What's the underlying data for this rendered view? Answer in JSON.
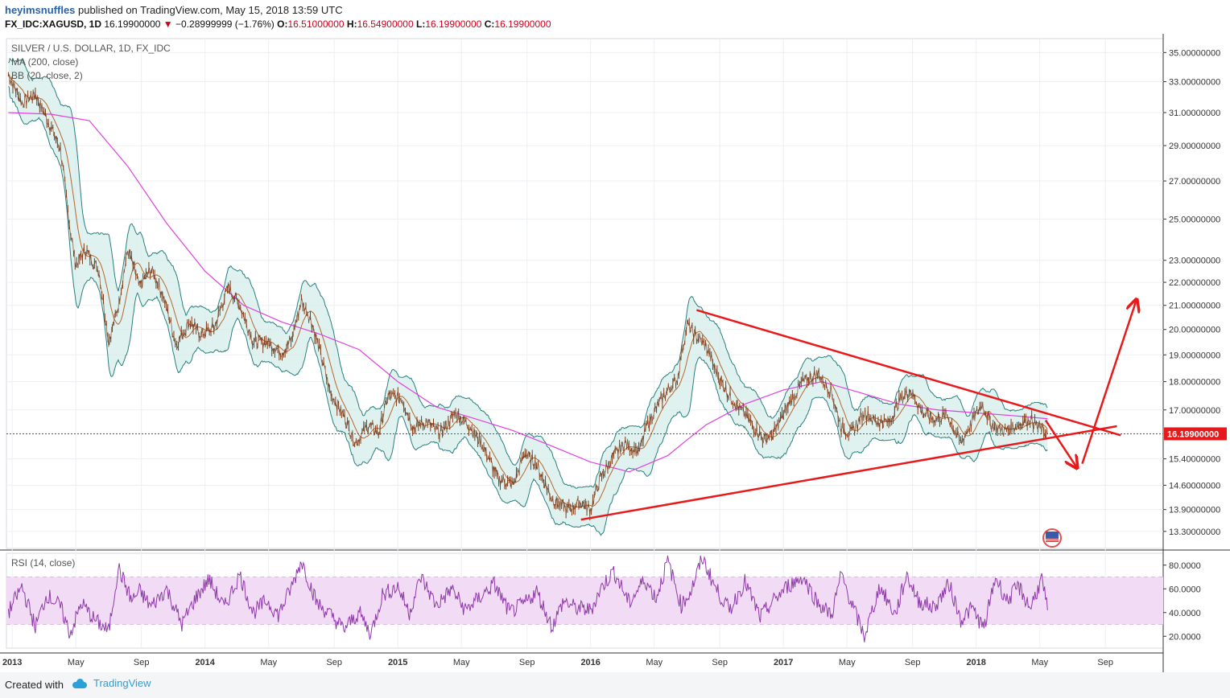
{
  "header": {
    "user": "heyimsnuffles",
    "published": "published on TradingView.com, May 15, 2018 13:59 UTC",
    "symbol": "FX_IDC:XAGUSD, 1D",
    "last": "16.19900000",
    "change": "−0.28999999 (−1.76%)",
    "o_label": "O:",
    "o_value": "16.51000000",
    "h_label": "H:",
    "h_value": "16.54900000",
    "l_label": "L:",
    "l_value": "16.19900000",
    "c_label": "C:",
    "c_value": "16.19900000",
    "down_arrow": "▼"
  },
  "legend": {
    "series": "SILVER / U.S. DOLLAR, 1D, FX_IDC",
    "ma": "MA (200, close)",
    "bb": "BB (20, close, 2)",
    "rsi": "RSI (14, close)"
  },
  "footer": {
    "created": "Created with",
    "brand": "TradingView",
    "icon": "tradingview-cloud-icon"
  },
  "colors": {
    "candles": "#7a3b1a",
    "ma": "#e040e0",
    "bb_band": "#2a7f7f",
    "bb_fill": "#d2ece8",
    "rsi_line": "#8e3aa8",
    "rsi_band": "#f2dcf5",
    "annotation": "#e8191a",
    "last_price_line": "#e8191a"
  },
  "chart_data": {
    "type": "line",
    "title": "SILVER / U.S. DOLLAR, 1D, FX_IDC",
    "price_axis": {
      "scale": "log",
      "ticks": [
        "35.00000000",
        "33.00000000",
        "31.00000000",
        "29.00000000",
        "27.00000000",
        "25.00000000",
        "23.00000000",
        "22.00000000",
        "21.00000000",
        "20.00000000",
        "19.00000000",
        "18.00000000",
        "17.00000000",
        "15.40000000",
        "14.60000000",
        "13.90000000",
        "13.30000000"
      ],
      "tick_values": [
        35,
        33,
        31,
        29,
        27,
        25,
        23,
        22,
        21,
        20,
        19,
        18,
        17,
        15.4,
        14.6,
        13.9,
        13.3
      ],
      "last_label": "16.19900000",
      "last_value": 16.199
    },
    "time_axis": {
      "labels": [
        "2013",
        "May",
        "Sep",
        "2014",
        "May",
        "Sep",
        "2015",
        "May",
        "Sep",
        "2016",
        "May",
        "Sep",
        "2017",
        "May",
        "Sep",
        "2018",
        "May",
        "Sep"
      ],
      "values": [
        2013.0,
        2013.33,
        2013.67,
        2014.0,
        2014.33,
        2014.67,
        2015.0,
        2015.33,
        2015.67,
        2016.0,
        2016.33,
        2016.67,
        2017.0,
        2017.33,
        2017.67,
        2018.0,
        2018.33,
        2018.67
      ],
      "bold": [
        true,
        false,
        false,
        true,
        false,
        false,
        true,
        false,
        false,
        true,
        false,
        false,
        true,
        false,
        false,
        true,
        false,
        false
      ]
    },
    "price_series": {
      "name": "XAGUSD",
      "x": [
        2012.98,
        2013.05,
        2013.12,
        2013.18,
        2013.25,
        2013.3,
        2013.33,
        2013.38,
        2013.45,
        2013.5,
        2013.55,
        2013.6,
        2013.66,
        2013.72,
        2013.78,
        2013.85,
        2013.92,
        2013.98,
        2014.05,
        2014.12,
        2014.18,
        2014.25,
        2014.32,
        2014.4,
        2014.45,
        2014.5,
        2014.55,
        2014.6,
        2014.65,
        2014.72,
        2014.78,
        2014.85,
        2014.9,
        2014.95,
        2015.02,
        2015.08,
        2015.15,
        2015.22,
        2015.3,
        2015.38,
        2015.45,
        2015.52,
        2015.6,
        2015.66,
        2015.72,
        2015.8,
        2015.88,
        2015.95,
        2016.0,
        2016.05,
        2016.12,
        2016.18,
        2016.25,
        2016.3,
        2016.38,
        2016.45,
        2016.5,
        2016.55,
        2016.6,
        2016.66,
        2016.72,
        2016.78,
        2016.85,
        2016.9,
        2016.95,
        2017.02,
        2017.1,
        2017.18,
        2017.25,
        2017.3,
        2017.35,
        2017.42,
        2017.48,
        2017.55,
        2017.6,
        2017.66,
        2017.72,
        2017.78,
        2017.85,
        2017.92,
        2017.97,
        2018.03,
        2018.08,
        2018.15,
        2018.22,
        2018.28,
        2018.32,
        2018.37
      ],
      "y": [
        33.5,
        31.6,
        32.2,
        30.6,
        28.8,
        24.5,
        22.8,
        23.5,
        22.5,
        19.5,
        21.0,
        23.5,
        21.8,
        22.6,
        21.5,
        19.4,
        20.3,
        19.8,
        20.1,
        21.8,
        21.0,
        19.5,
        19.5,
        19.1,
        19.6,
        21.2,
        20.4,
        19.0,
        17.6,
        16.8,
        15.9,
        16.5,
        16.2,
        17.5,
        17.4,
        16.4,
        16.6,
        16.2,
        16.9,
        16.4,
        15.7,
        14.8,
        14.6,
        15.6,
        15.2,
        14.2,
        13.9,
        14.1,
        13.9,
        14.8,
        15.5,
        15.9,
        15.6,
        16.6,
        17.5,
        18.1,
        20.2,
        19.7,
        19.3,
        18.2,
        17.5,
        17.0,
        16.4,
        16.0,
        16.2,
        17.1,
        18.0,
        18.3,
        17.6,
        16.4,
        16.2,
        16.9,
        16.6,
        16.6,
        17.3,
        17.7,
        16.9,
        16.7,
        16.8,
        15.9,
        16.5,
        17.2,
        16.5,
        16.3,
        16.5,
        16.7,
        16.4,
        16.2
      ]
    },
    "ma200": {
      "name": "MA (200, close)",
      "x": [
        2012.98,
        2013.2,
        2013.4,
        2013.6,
        2013.8,
        2014.0,
        2014.2,
        2014.4,
        2014.6,
        2014.8,
        2015.0,
        2015.2,
        2015.4,
        2015.6,
        2015.8,
        2016.0,
        2016.2,
        2016.4,
        2016.5,
        2016.6,
        2016.8,
        2017.0,
        2017.2,
        2017.4,
        2017.6,
        2017.8,
        2018.0,
        2018.2,
        2018.37
      ],
      "y": [
        31.0,
        30.9,
        30.5,
        27.8,
        24.8,
        22.5,
        21.0,
        20.3,
        19.8,
        19.2,
        18.0,
        17.1,
        16.7,
        16.3,
        15.8,
        15.3,
        15.0,
        15.5,
        16.0,
        16.5,
        17.2,
        17.7,
        18.0,
        17.6,
        17.2,
        17.0,
        16.9,
        16.8,
        16.7
      ]
    },
    "rsi": {
      "name": "RSI (14, close)",
      "axis_ticks": [
        "80.0000",
        "60.0000",
        "40.0000",
        "20.0000"
      ],
      "tick_values": [
        80,
        60,
        40,
        20
      ],
      "band": [
        30,
        70
      ],
      "x": [
        2012.98,
        2013.05,
        2013.12,
        2013.18,
        2013.25,
        2013.3,
        2013.36,
        2013.42,
        2013.5,
        2013.55,
        2013.62,
        2013.66,
        2013.72,
        2013.8,
        2013.88,
        2013.95,
        2014.02,
        2014.1,
        2014.18,
        2014.25,
        2014.32,
        2014.38,
        2014.45,
        2014.5,
        2014.58,
        2014.65,
        2014.72,
        2014.8,
        2014.86,
        2014.92,
        2015.0,
        2015.06,
        2015.12,
        2015.2,
        2015.28,
        2015.35,
        2015.42,
        2015.5,
        2015.58,
        2015.66,
        2015.72,
        2015.8,
        2015.86,
        2015.92,
        2016.0,
        2016.06,
        2016.12,
        2016.2,
        2016.28,
        2016.34,
        2016.4,
        2016.47,
        2016.52,
        2016.58,
        2016.65,
        2016.72,
        2016.8,
        2016.88,
        2016.95,
        2017.02,
        2017.1,
        2017.18,
        2017.25,
        2017.3,
        2017.36,
        2017.42,
        2017.5,
        2017.58,
        2017.64,
        2017.7,
        2017.78,
        2017.86,
        2017.92,
        2017.98,
        2018.04,
        2018.1,
        2018.16,
        2018.22,
        2018.28,
        2018.34,
        2018.37
      ],
      "y": [
        40,
        62,
        28,
        55,
        45,
        22,
        48,
        35,
        24,
        78,
        50,
        58,
        45,
        60,
        30,
        52,
        68,
        44,
        72,
        40,
        50,
        38,
        62,
        84,
        48,
        38,
        26,
        40,
        22,
        55,
        62,
        40,
        70,
        46,
        60,
        42,
        52,
        64,
        40,
        48,
        58,
        28,
        50,
        44,
        42,
        62,
        75,
        48,
        68,
        52,
        84,
        46,
        58,
        86,
        60,
        42,
        66,
        36,
        50,
        62,
        70,
        48,
        38,
        72,
        45,
        20,
        62,
        38,
        72,
        50,
        44,
        64,
        34,
        44,
        26,
        70,
        50,
        62,
        44,
        68,
        42
      ]
    },
    "annotations": [
      {
        "type": "trendline",
        "label": "resistance",
        "x": [
          2016.55,
          2018.75
        ],
        "y": [
          20.8,
          16.15
        ]
      },
      {
        "type": "trendline",
        "label": "support",
        "x": [
          2015.95,
          2018.73
        ],
        "y": [
          13.62,
          16.45
        ]
      },
      {
        "type": "arrow",
        "label": "down",
        "x": [
          2018.36,
          2018.52
        ],
        "y": [
          16.65,
          15.15
        ]
      },
      {
        "type": "arrow",
        "label": "up",
        "x": [
          2018.55,
          2018.83
        ],
        "y": [
          15.25,
          21.2
        ]
      }
    ]
  }
}
